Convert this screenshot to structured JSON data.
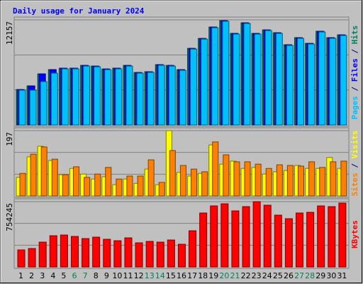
{
  "chart_data": [
    {
      "type": "bar",
      "title": "Daily usage for January 2024",
      "ylim": [
        0,
        12157
      ],
      "yticks": [
        12157
      ],
      "legend_separator": "/",
      "series": [
        {
          "name": "Hits",
          "color": "#00805c",
          "values": [
            4100,
            4520,
            5910,
            6400,
            6570,
            6570,
            6890,
            6810,
            6480,
            6570,
            6890,
            6070,
            6160,
            6980,
            6890,
            6400,
            8860,
            10010,
            11330,
            12070,
            10590,
            11820,
            10590,
            11000,
            10670,
            9280,
            10100,
            9440,
            10840,
            10100,
            10430
          ]
        },
        {
          "name": "Files",
          "color": "#0000ff",
          "values": [
            4100,
            4520,
            5910,
            6400,
            6570,
            6570,
            6890,
            6810,
            6480,
            6570,
            6890,
            6070,
            6160,
            6980,
            6890,
            6400,
            8860,
            10010,
            11330,
            12070,
            10590,
            11820,
            10590,
            11000,
            10670,
            9280,
            10100,
            9440,
            10840,
            10100,
            10430
          ]
        },
        {
          "name": "Pages",
          "color": "#00c0ff",
          "values": [
            4020,
            4020,
            5010,
            5990,
            6490,
            6490,
            6810,
            6730,
            6400,
            6490,
            6810,
            5990,
            6080,
            6900,
            6810,
            6320,
            8780,
            9930,
            11250,
            11990,
            10510,
            11740,
            10510,
            10920,
            10590,
            9200,
            10020,
            9360,
            10760,
            10020,
            10350
          ]
        }
      ]
    },
    {
      "type": "bar",
      "ylim": [
        0,
        197
      ],
      "yticks": [
        197
      ],
      "legend_separator": "/",
      "series": [
        {
          "name": "Visits",
          "color": "#ffff00",
          "values": [
            56,
            118,
            150,
            107,
            64,
            83,
            66,
            51,
            58,
            34,
            51,
            38,
            81,
            34,
            197,
            71,
            60,
            68,
            154,
            96,
            105,
            83,
            86,
            66,
            73,
            77,
            92,
            83,
            83,
            116,
            83
          ]
        },
        {
          "name": "Sites",
          "color": "#ff8000",
          "values": [
            68,
            126,
            148,
            111,
            64,
            88,
            56,
            66,
            86,
            51,
            60,
            60,
            109,
            41,
            137,
            92,
            81,
            73,
            163,
            124,
            103,
            103,
            96,
            83,
            94,
            92,
            90,
            103,
            86,
            103,
            105
          ]
        }
      ]
    },
    {
      "type": "bar",
      "ylim": [
        0,
        754245
      ],
      "yticks": [
        754245
      ],
      "series": [
        {
          "name": "KBytes",
          "color": "#ff0000",
          "values": [
            196750,
            213150,
            286930,
            360710,
            368910,
            352510,
            327920,
            344310,
            319720,
            303320,
            336120,
            278730,
            295130,
            286930,
            311520,
            262330,
            418100,
            623050,
            705030,
            729620,
            647640,
            696830,
            754245,
            713220,
            598460,
            557470,
            623050,
            631250,
            705030,
            696830,
            737840
          ]
        }
      ],
      "categories": [
        "1",
        "2",
        "3",
        "4",
        "5",
        "6",
        "7",
        "8",
        "9",
        "10",
        "11",
        "12",
        "13",
        "14",
        "15",
        "16",
        "17",
        "18",
        "19",
        "20",
        "21",
        "22",
        "23",
        "24",
        "25",
        "26",
        "27",
        "28",
        "29",
        "30",
        "31"
      ],
      "category_colors": [
        "#000000",
        "#000000",
        "#000000",
        "#000000",
        "#000000",
        "#00805c",
        "#00805c",
        "#000000",
        "#000000",
        "#000000",
        "#000000",
        "#000000",
        "#00805c",
        "#00805c",
        "#000000",
        "#000000",
        "#000000",
        "#000000",
        "#000000",
        "#00805c",
        "#00805c",
        "#000000",
        "#000000",
        "#000000",
        "#000000",
        "#000000",
        "#00805c",
        "#00805c",
        "#000000",
        "#000000",
        "#000000"
      ]
    }
  ]
}
